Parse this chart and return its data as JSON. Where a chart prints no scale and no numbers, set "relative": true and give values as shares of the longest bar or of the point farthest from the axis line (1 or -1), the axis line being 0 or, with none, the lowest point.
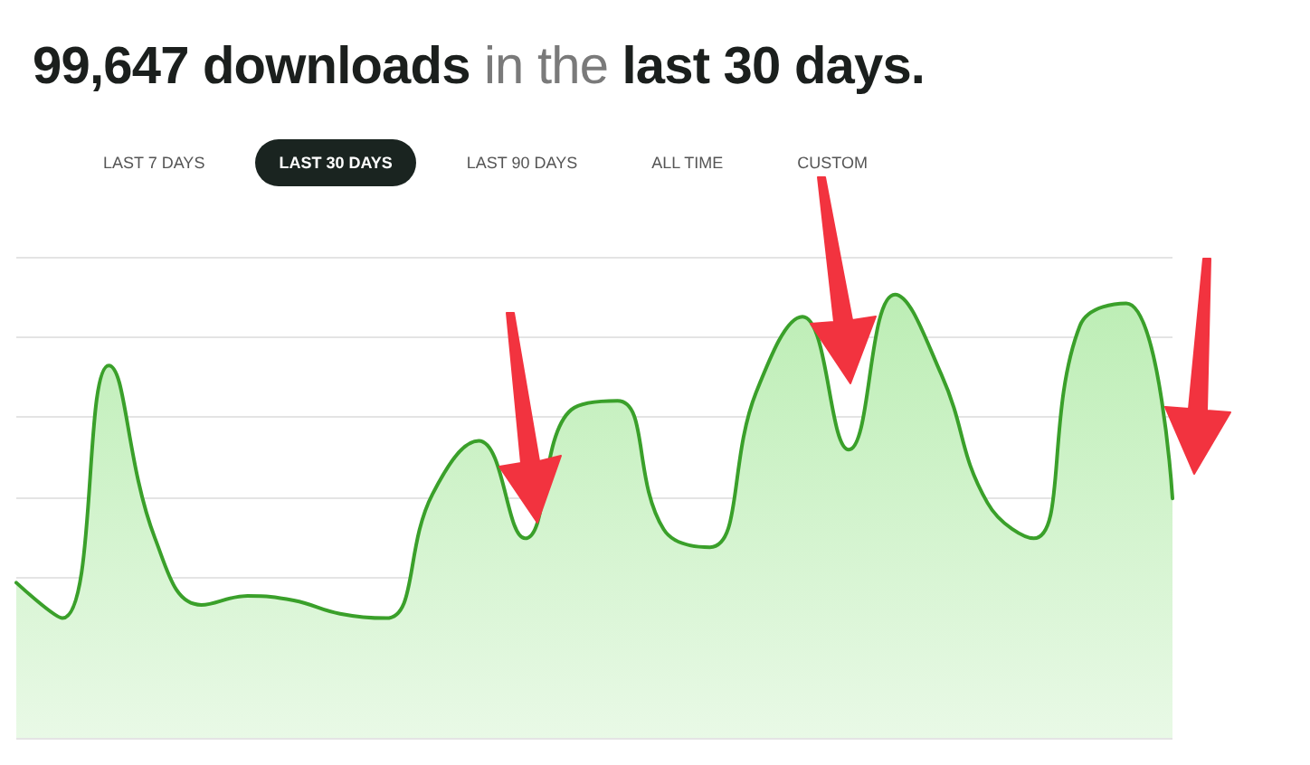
{
  "chart_data": {
    "type": "area",
    "title": "99,647 downloads in the last 30 days.",
    "annotations": [
      "LAST 7 DAYS",
      "LAST 30 DAYS",
      "LAST 90 DAYS",
      "ALL TIME",
      "CUSTOM"
    ],
    "categories": [
      null,
      null,
      null,
      null,
      null,
      null,
      null,
      null,
      null,
      null,
      null,
      null,
      null,
      null,
      null,
      null,
      null,
      null,
      null,
      null,
      null,
      null,
      null,
      null,
      null,
      null
    ],
    "series": [
      {
        "color": "#3aa02a",
        "values": [
          0.35,
          0.27,
          0.84,
          0.45,
          0.3,
          0.32,
          0.31,
          0.28,
          0.27,
          0.55,
          0.67,
          0.45,
          0.74,
          0.76,
          0.47,
          0.43,
          0.78,
          0.95,
          0.65,
          1,
          0.82,
          0.53,
          0.45,
          0.93,
          0.98,
          0.54
        ]
      }
    ],
    "relative": true,
    "grid": "y",
    "marker": "none"
  }
}
